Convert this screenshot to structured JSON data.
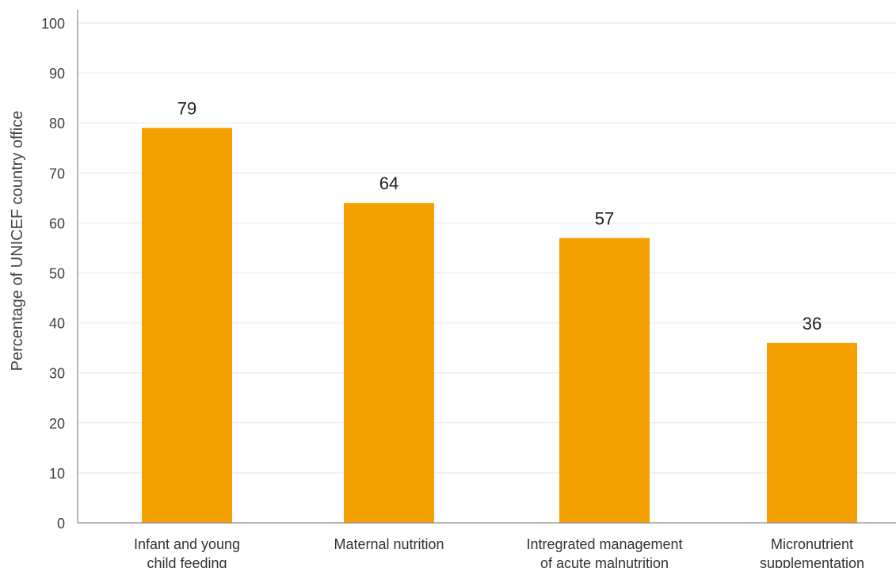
{
  "chart_data": {
    "type": "bar",
    "categories": [
      [
        "Infant and young",
        "child feeding"
      ],
      [
        "Maternal nutrition"
      ],
      [
        "Intregrated management",
        "of acute malnutrition"
      ],
      [
        "Micronutrient",
        "supplementation"
      ]
    ],
    "values": [
      79,
      64,
      57,
      36
    ],
    "data_labels": [
      "79",
      "64",
      "57",
      "36"
    ],
    "xlabel": "",
    "ylabel": "Percentage of UNICEF country office",
    "ylim": [
      0,
      100
    ],
    "yticks": [
      0,
      10,
      20,
      30,
      40,
      50,
      60,
      70,
      80,
      90,
      100
    ],
    "grid": true,
    "colors": {
      "bar": "#f3a000",
      "grid": "#e6e6e6",
      "axis": "#8a8a8a",
      "text": "#333333"
    }
  }
}
